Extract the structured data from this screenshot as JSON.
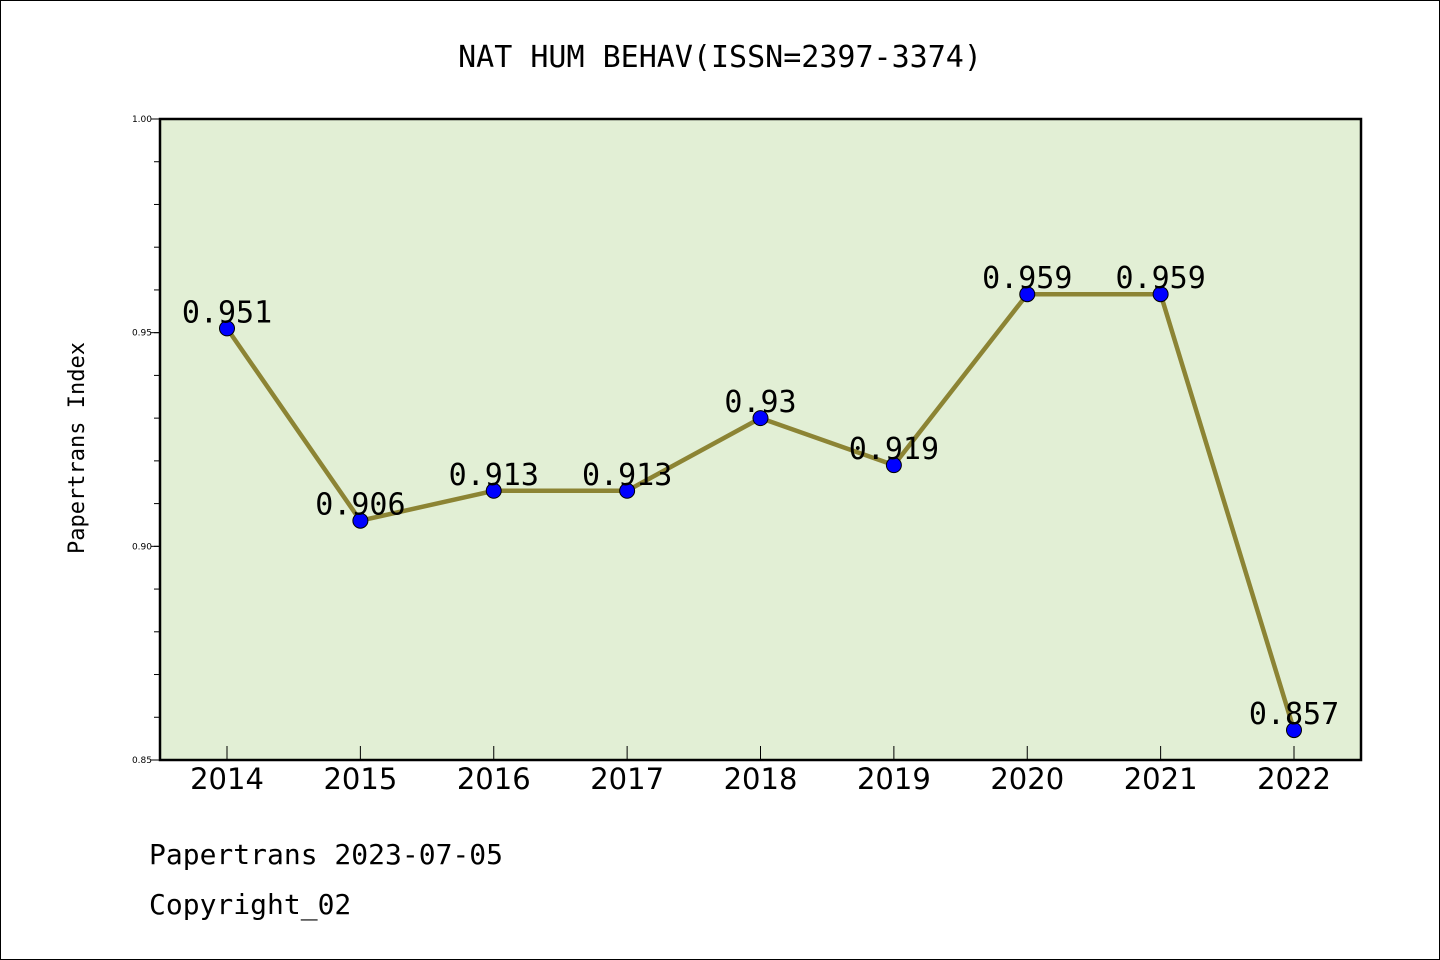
{
  "chart_data": {
    "type": "line",
    "title": "NAT HUM BEHAV(ISSN=2397-3374)",
    "xlabel": "",
    "ylabel": "Papertrans Index",
    "categories": [
      "2014",
      "2015",
      "2016",
      "2017",
      "2018",
      "2019",
      "2020",
      "2021",
      "2022"
    ],
    "values": [
      0.951,
      0.906,
      0.913,
      0.913,
      0.93,
      0.919,
      0.959,
      0.959,
      0.857
    ],
    "data_labels": [
      "0.951",
      "0.906",
      "0.913",
      "0.913",
      "0.93",
      "0.919",
      "0.959",
      "0.959",
      "0.857"
    ],
    "ylim": [
      0.85,
      1.0
    ],
    "yticks": [
      0.85,
      0.9,
      0.95,
      1.0
    ],
    "ytick_labels": [
      "0.85",
      "0.90",
      "0.95",
      "1.00"
    ],
    "grid": false,
    "legend": "none",
    "colors": {
      "plot_background": "#e2efd5",
      "line": "#8c8434",
      "marker": "#0000ff"
    }
  },
  "footer": {
    "source": "Papertrans 2023-07-05",
    "copyright": "Copyright_02"
  }
}
